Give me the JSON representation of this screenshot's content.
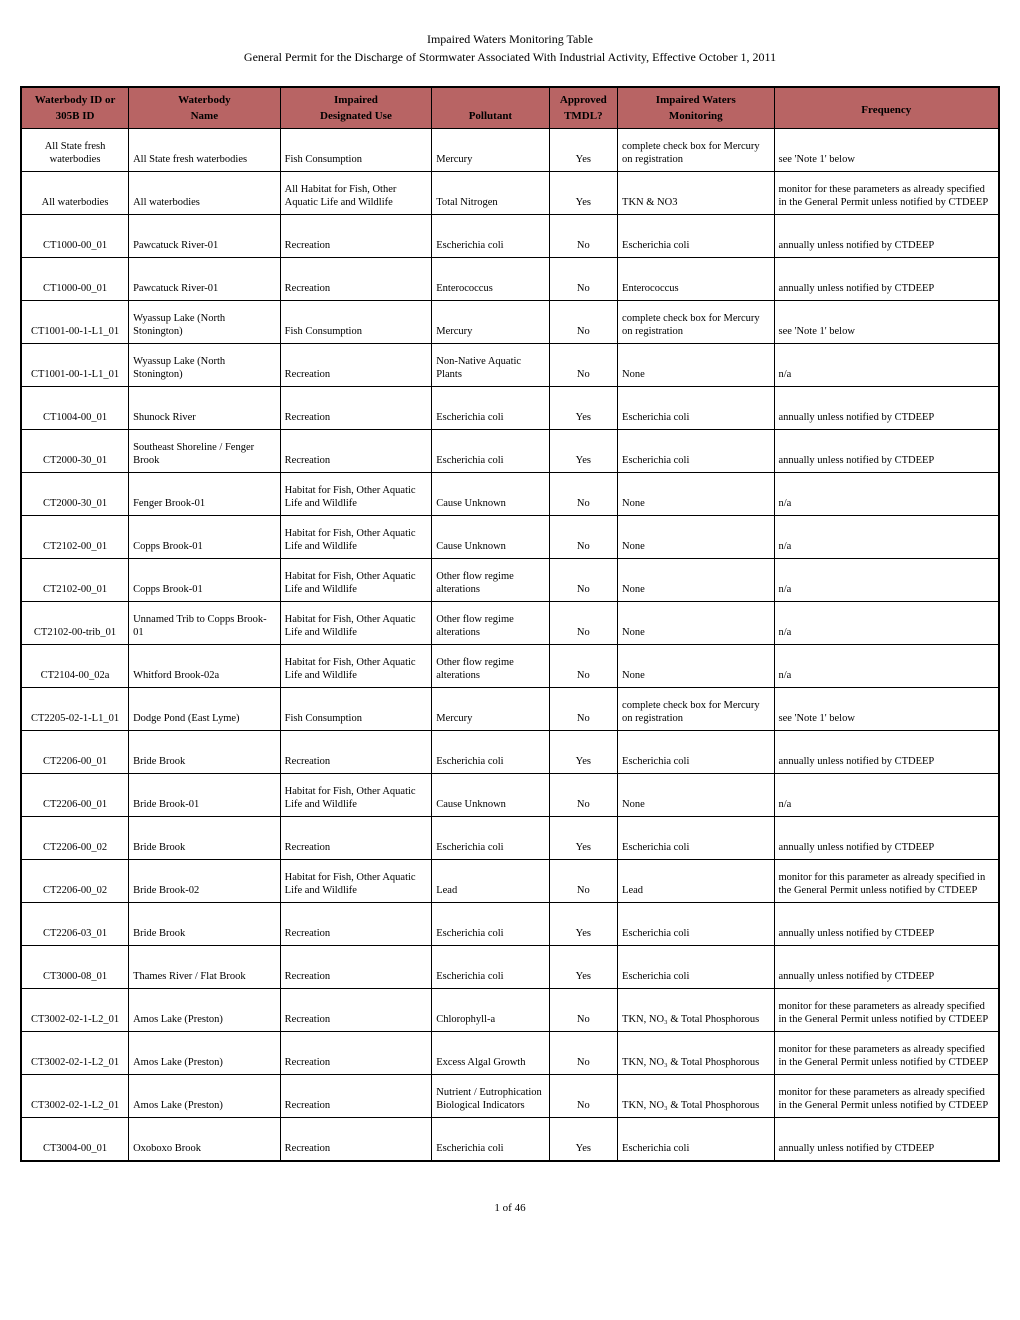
{
  "title1": "Impaired Waters Monitoring Table",
  "title2": "General Permit for the Discharge of Stormwater Associated With Industrial Activity, Effective October 1, 2011",
  "footer": "1 of 46",
  "header": {
    "r1": [
      "Waterbody ID or",
      "Waterbody",
      "Impaired",
      "",
      "Approved",
      "Impaired Waters",
      "Frequency"
    ],
    "r2": [
      "305B ID",
      "Name",
      "Designated Use",
      "Pollutant",
      "TMDL?",
      "Monitoring",
      ""
    ]
  },
  "rows": [
    [
      "All State fresh waterbodies",
      "All State fresh waterbodies",
      "Fish Consumption",
      "Mercury",
      "Yes",
      "complete check box for Mercury on registration",
      "see 'Note 1' below"
    ],
    [
      "All waterbodies",
      "All waterbodies",
      "All Habitat for Fish, Other Aquatic Life and Wildlife",
      "Total Nitrogen",
      "Yes",
      "TKN & NO3",
      "monitor for these parameters as already specified in the General Permit unless notified by CTDEEP"
    ],
    [
      "CT1000-00_01",
      "Pawcatuck River-01",
      "Recreation",
      "Escherichia coli",
      "No",
      "Escherichia coli",
      "annually unless notified by CTDEEP"
    ],
    [
      "CT1000-00_01",
      "Pawcatuck River-01",
      "Recreation",
      "Enterococcus",
      "No",
      "Enterococcus",
      "annually unless notified by CTDEEP"
    ],
    [
      "CT1001-00-1-L1_01",
      "Wyassup Lake (North Stonington)",
      "Fish Consumption",
      "Mercury",
      "No",
      "complete check box for Mercury on registration",
      "see 'Note 1' below"
    ],
    [
      "CT1001-00-1-L1_01",
      "Wyassup Lake (North Stonington)",
      "Recreation",
      "Non-Native Aquatic Plants",
      "No",
      "None",
      "n/a"
    ],
    [
      "CT1004-00_01",
      "Shunock River",
      "Recreation",
      "Escherichia coli",
      "Yes",
      "Escherichia coli",
      "annually unless notified by CTDEEP"
    ],
    [
      "CT2000-30_01",
      "Southeast Shoreline / Fenger Brook",
      "Recreation",
      "Escherichia coli",
      "Yes",
      "Escherichia coli",
      "annually unless notified by CTDEEP"
    ],
    [
      "CT2000-30_01",
      "Fenger Brook-01",
      "Habitat for Fish, Other Aquatic Life and Wildlife",
      "Cause Unknown",
      "No",
      "None",
      "n/a"
    ],
    [
      "CT2102-00_01",
      "Copps Brook-01",
      "Habitat for Fish, Other Aquatic Life and Wildlife",
      "Cause Unknown",
      "No",
      "None",
      "n/a"
    ],
    [
      "CT2102-00_01",
      "Copps Brook-01",
      "Habitat for Fish, Other Aquatic Life and Wildlife",
      "Other flow regime alterations",
      "No",
      "None",
      "n/a"
    ],
    [
      "CT2102-00-trib_01",
      "Unnamed Trib to Copps Brook-01",
      "Habitat for Fish, Other Aquatic Life and Wildlife",
      "Other flow regime alterations",
      "No",
      "None",
      "n/a"
    ],
    [
      "CT2104-00_02a",
      "Whitford Brook-02a",
      "Habitat for Fish, Other Aquatic Life and Wildlife",
      "Other flow regime alterations",
      "No",
      "None",
      "n/a"
    ],
    [
      "CT2205-02-1-L1_01",
      "Dodge Pond (East Lyme)",
      "Fish Consumption",
      "Mercury",
      "No",
      "complete check box for Mercury on registration",
      "see 'Note 1' below"
    ],
    [
      "CT2206-00_01",
      "Bride Brook",
      "Recreation",
      "Escherichia coli",
      "Yes",
      "Escherichia coli",
      "annually unless notified by CTDEEP"
    ],
    [
      "CT2206-00_01",
      "Bride Brook-01",
      "Habitat for Fish, Other Aquatic Life and Wildlife",
      "Cause Unknown",
      "No",
      "None",
      "n/a"
    ],
    [
      "CT2206-00_02",
      "Bride Brook",
      "Recreation",
      "Escherichia coli",
      "Yes",
      "Escherichia coli",
      "annually unless notified by CTDEEP"
    ],
    [
      "CT2206-00_02",
      "Bride Brook-02",
      "Habitat for Fish, Other Aquatic Life and Wildlife",
      "Lead",
      "No",
      "Lead",
      "monitor for this parameter as already specified in the General Permit unless notified by CTDEEP"
    ],
    [
      "CT2206-03_01",
      "Bride Brook",
      "Recreation",
      "Escherichia coli",
      "Yes",
      "Escherichia coli",
      "annually unless notified by CTDEEP"
    ],
    [
      "CT3000-08_01",
      "Thames River / Flat Brook",
      "Recreation",
      "Escherichia coli",
      "Yes",
      "Escherichia coli",
      "annually unless notified by CTDEEP"
    ],
    [
      "CT3002-02-1-L2_01",
      "Amos Lake (Preston)",
      "Recreation",
      "Chlorophyll-a",
      "No",
      "TKN, NO₃ & Total Phosphorous",
      "monitor for these parameters as already specified in the General Permit unless notified by CTDEEP"
    ],
    [
      "CT3002-02-1-L2_01",
      "Amos Lake (Preston)",
      "Recreation",
      "Excess Algal Growth",
      "No",
      "TKN, NO₃ & Total Phosphorous",
      "monitor for these parameters as already specified in the General Permit unless notified by CTDEEP"
    ],
    [
      "CT3002-02-1-L2_01",
      "Amos Lake (Preston)",
      "Recreation",
      "Nutrient / Eutrophication Biological Indicators",
      "No",
      "TKN, NO₃ & Total Phosphorous",
      "monitor for these parameters as already specified in the General Permit unless notified by CTDEEP"
    ],
    [
      "CT3004-00_01",
      "Oxoboxo Brook",
      "Recreation",
      "Escherichia coli",
      "Yes",
      "Escherichia coli",
      "annually unless notified by CTDEEP"
    ]
  ]
}
